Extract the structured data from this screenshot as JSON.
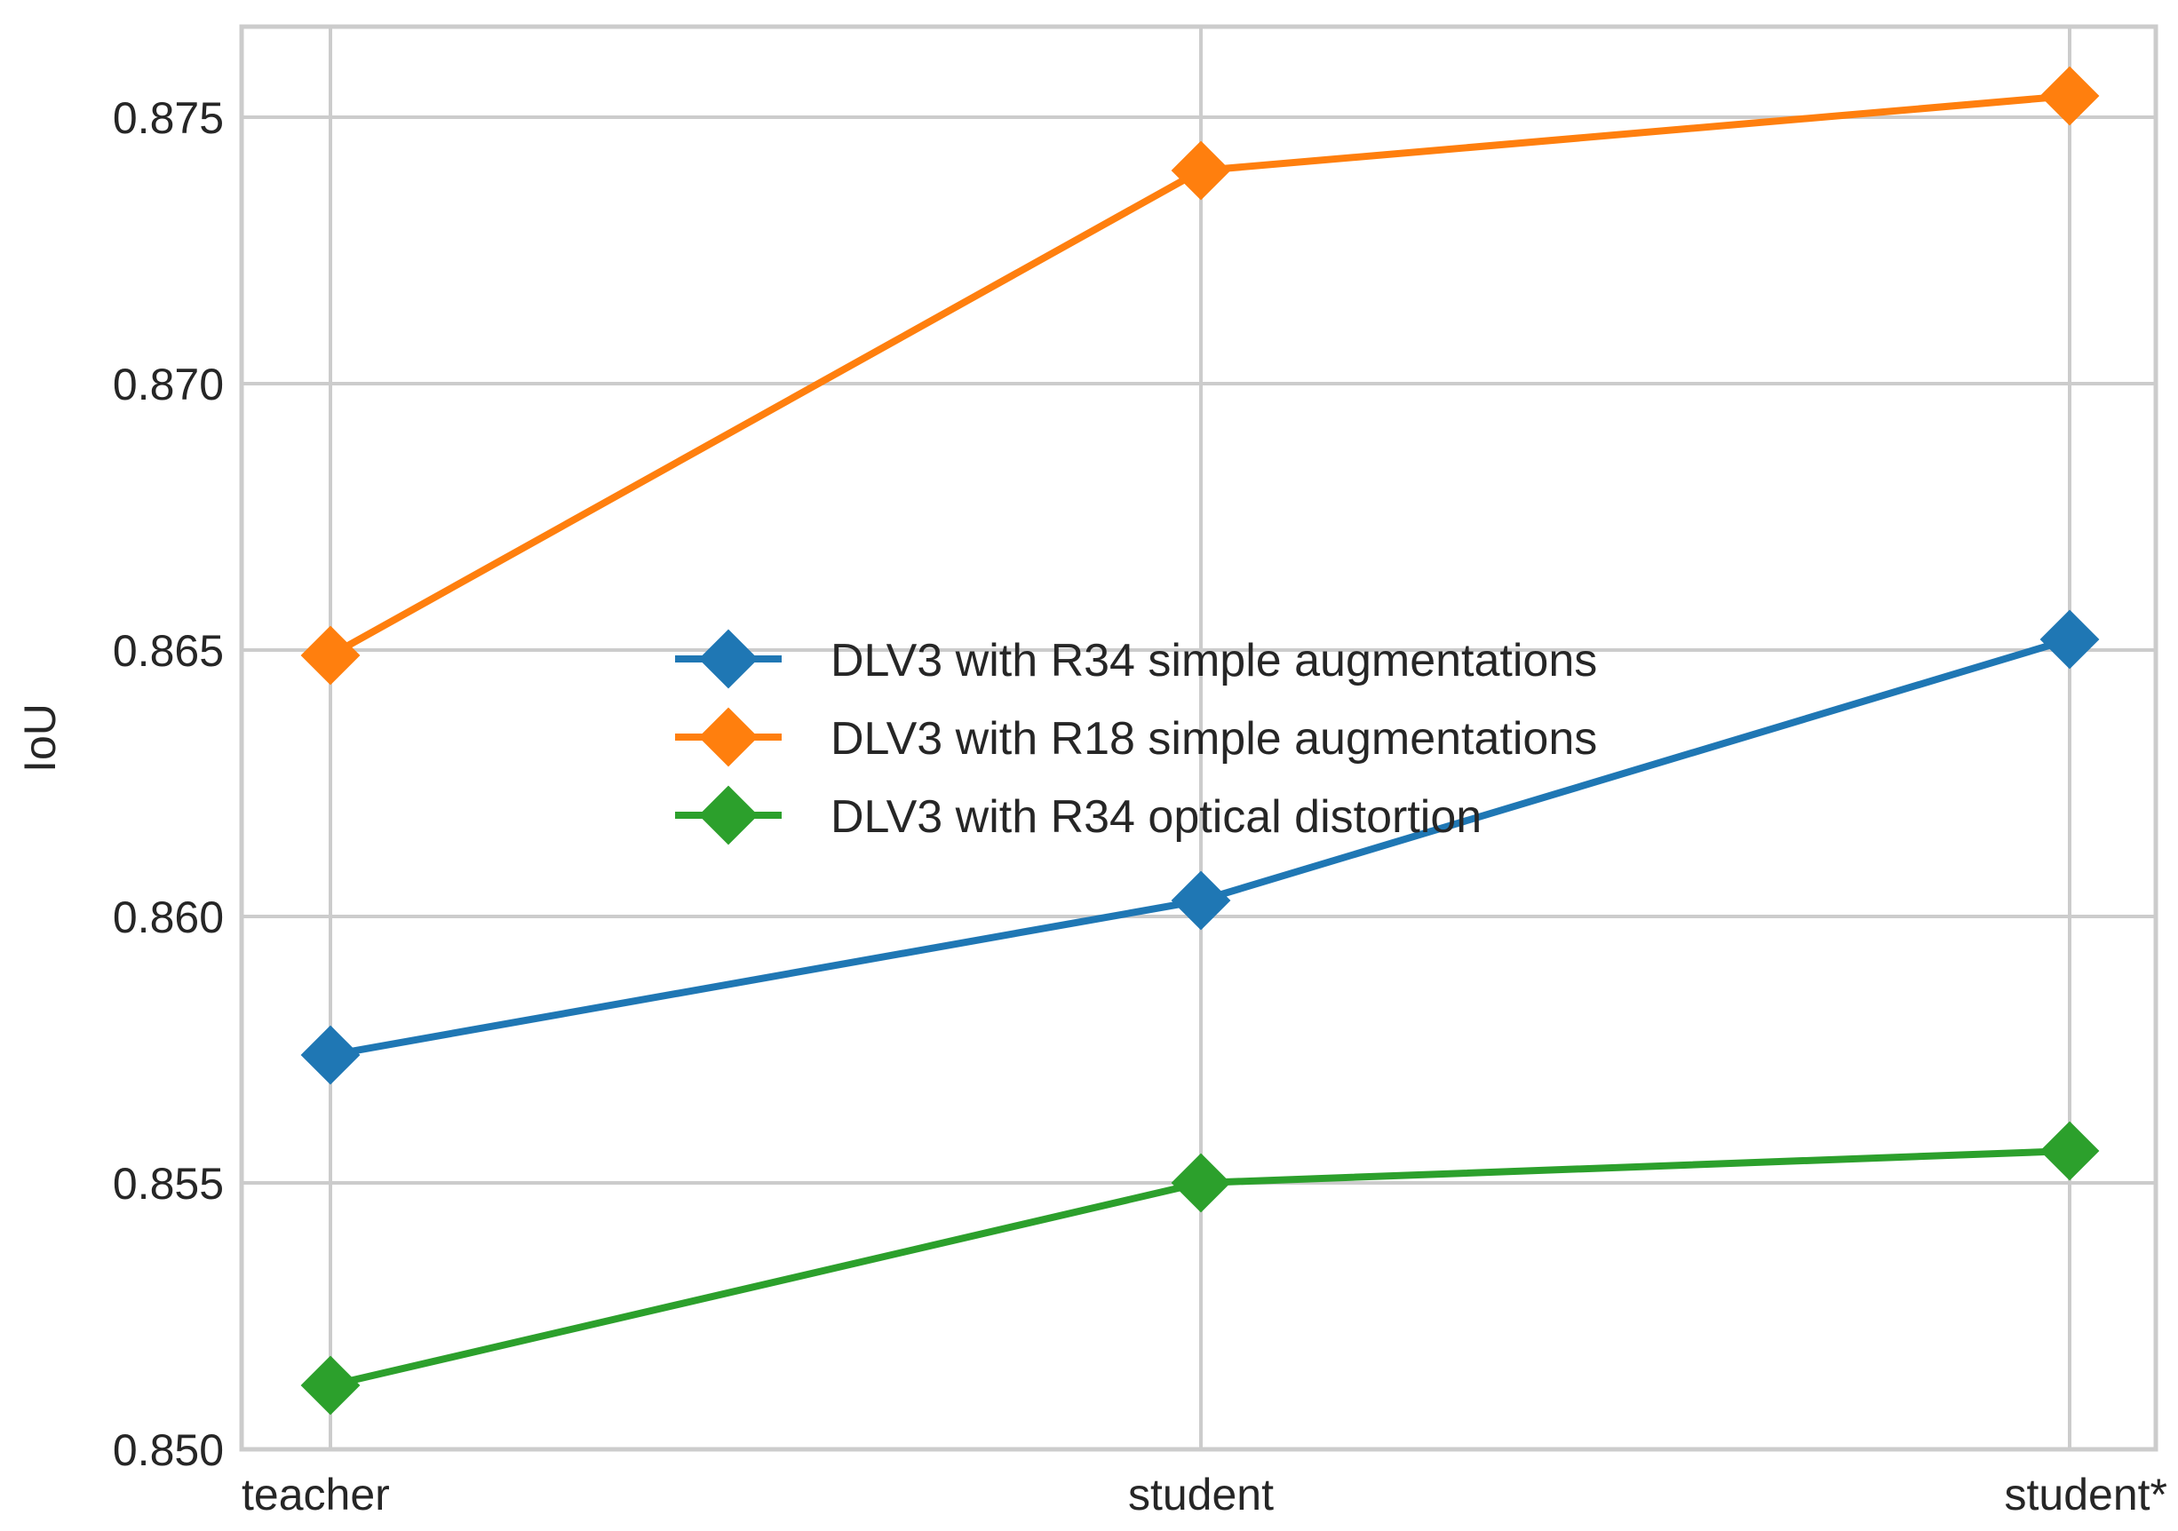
{
  "chart_data": {
    "type": "line",
    "categories": [
      "teacher",
      "student",
      "student*"
    ],
    "ylabel": "IoU",
    "xlabel": "",
    "ylim": [
      0.85,
      0.8767
    ],
    "yticks": [
      "0.850",
      "0.855",
      "0.860",
      "0.865",
      "0.870",
      "0.875"
    ],
    "ytick_values": [
      0.85,
      0.855,
      0.86,
      0.865,
      0.87,
      0.875
    ],
    "grid": true,
    "legend_position": "center",
    "marker": "diamond",
    "series": [
      {
        "name": "DLV3 with R34 simple augmentations",
        "color": "#1f77b4",
        "values": [
          0.8574,
          0.8603,
          0.8652
        ]
      },
      {
        "name": "DLV3 with R18 simple augmentations",
        "color": "#ff7f0e",
        "values": [
          0.8649,
          0.874,
          0.8754
        ]
      },
      {
        "name": "DLV3 with R34 optical distortion",
        "color": "#2ca02c",
        "values": [
          0.8512,
          0.855,
          0.8556
        ]
      }
    ]
  }
}
